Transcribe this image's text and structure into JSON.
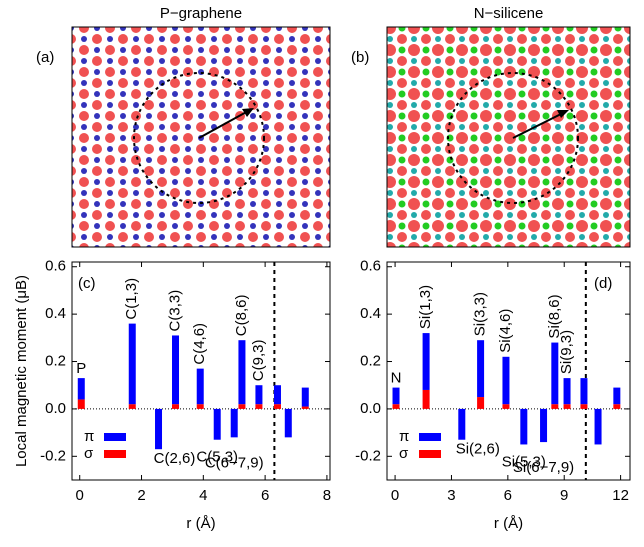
{
  "chart_data": [
    {
      "type": "bar",
      "title": "P−graphene",
      "image_label": "(a)",
      "panel_label": "(c)",
      "y_label": "Local magnetic moment (μB)",
      "x_label": "r (Å)",
      "x": [
        0.05,
        1.7,
        2.55,
        3.1,
        3.9,
        4.45,
        5.0,
        5.25,
        5.8,
        6.4,
        6.75,
        7.3
      ],
      "categories": [
        "P",
        "C(1,3)",
        "C(2,6)",
        "C(3,3)",
        "C(4,6)",
        "C(5,3)",
        "C(6−7,9)",
        "C(8,6)",
        "C(9,3)",
        null,
        null,
        null
      ],
      "series": [
        {
          "name": "σ",
          "color": "#ff0000",
          "values": [
            0.04,
            0.02,
            0,
            0.02,
            0.02,
            0,
            0,
            0.02,
            0.02,
            0.02,
            0,
            0.01
          ]
        },
        {
          "name": "π",
          "color": "#0000ff",
          "values": [
            0.09,
            0.34,
            -0.17,
            0.29,
            0.15,
            -0.13,
            -0.12,
            0.27,
            0.08,
            0.08,
            -0.12,
            0.08
          ]
        }
      ],
      "xlim": [
        -0.25,
        8.1
      ],
      "xticks": [
        0,
        2,
        4,
        6,
        8
      ],
      "ylim": [
        -0.3,
        0.62
      ],
      "yticks": [
        -0.2,
        {
          "value": 0,
          "label": "0.0"
        },
        0.2,
        0.4,
        0.6
      ],
      "vline": 6.3
    },
    {
      "type": "bar",
      "title": "N−silicene",
      "image_label": "(b)",
      "panel_label": "(d)",
      "x_label": "r (Å)",
      "x": [
        0.05,
        1.65,
        3.55,
        4.55,
        5.9,
        6.85,
        7.9,
        8.5,
        9.15,
        10.05,
        10.8,
        11.8
      ],
      "categories": [
        "N",
        "Si(1,3)",
        "Si(2,6)",
        "Si(3,3)",
        "Si(4,6)",
        "Si(5,3)",
        "Si(6−7,9)",
        "Si(8,6)",
        "Si(9,3)",
        null,
        null,
        null
      ],
      "series": [
        {
          "name": "σ",
          "color": "#ff0000",
          "values": [
            0.02,
            0.08,
            0,
            0.05,
            0.02,
            0,
            0,
            0.02,
            0.02,
            0.02,
            0,
            0.02
          ]
        },
        {
          "name": "π",
          "color": "#0000ff",
          "values": [
            0.07,
            0.24,
            -0.13,
            0.24,
            0.2,
            -0.15,
            -0.14,
            0.26,
            0.11,
            0.11,
            -0.15,
            0.07
          ]
        }
      ],
      "xlim": [
        -0.43,
        12.5
      ],
      "xticks": [
        0,
        3,
        6,
        9,
        12
      ],
      "ylim": [
        -0.3,
        0.62
      ],
      "yticks": [
        -0.2,
        {
          "value": 0,
          "label": "0.0"
        },
        0.2,
        0.4,
        0.6
      ],
      "vline": 10.15
    }
  ]
}
